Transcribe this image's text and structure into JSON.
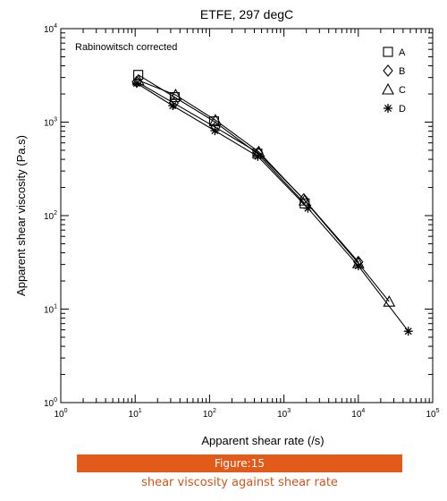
{
  "chart_data": {
    "type": "scatter",
    "title": "ETFE, 297 degC",
    "annotation": "Rabinowitsch corrected",
    "xlabel": "Apparent shear rate (/s)",
    "ylabel": "Apparent shear viscosity (Pa.s)",
    "xscale": "log",
    "yscale": "log",
    "xlim": [
      1,
      100000
    ],
    "ylim": [
      1,
      10000
    ],
    "x_ticks": [
      {
        "base": "10",
        "exp": "0",
        "v": 1
      },
      {
        "base": "10",
        "exp": "1",
        "v": 10
      },
      {
        "base": "10",
        "exp": "2",
        "v": 100
      },
      {
        "base": "10",
        "exp": "3",
        "v": 1000
      },
      {
        "base": "10",
        "exp": "4",
        "v": 10000
      },
      {
        "base": "10",
        "exp": "5",
        "v": 100000
      }
    ],
    "y_ticks": [
      {
        "base": "10",
        "exp": "0",
        "v": 1
      },
      {
        "base": "10",
        "exp": "1",
        "v": 10
      },
      {
        "base": "10",
        "exp": "2",
        "v": 100
      },
      {
        "base": "10",
        "exp": "3",
        "v": 1000
      },
      {
        "base": "10",
        "exp": "4",
        "v": 10000
      }
    ],
    "legend_position": "top-right",
    "grid": false,
    "series": [
      {
        "name": "A",
        "marker": "square",
        "connected": true,
        "x": [
          11,
          34,
          115,
          440,
          1900
        ],
        "y": [
          3200,
          1850,
          1020,
          460,
          135
        ]
      },
      {
        "name": "B",
        "marker": "diamond",
        "connected": true,
        "x": [
          10.5,
          33,
          120,
          450,
          1850,
          10000
        ],
        "y": [
          2700,
          1600,
          880,
          470,
          150,
          32
        ]
      },
      {
        "name": "C",
        "marker": "triangle",
        "connected": true,
        "x": [
          11,
          35,
          120,
          460,
          1900,
          10000,
          26000
        ],
        "y": [
          2800,
          1950,
          1050,
          480,
          145,
          31,
          12
        ]
      },
      {
        "name": "D",
        "marker": "asterisk",
        "connected": true,
        "x": [
          10.5,
          32,
          118,
          445,
          2100,
          10000,
          47000
        ],
        "y": [
          2600,
          1500,
          810,
          430,
          120,
          29,
          5.8
        ]
      }
    ]
  },
  "figure": {
    "label": "Figure:15",
    "caption": "shear viscosity against shear rate"
  }
}
